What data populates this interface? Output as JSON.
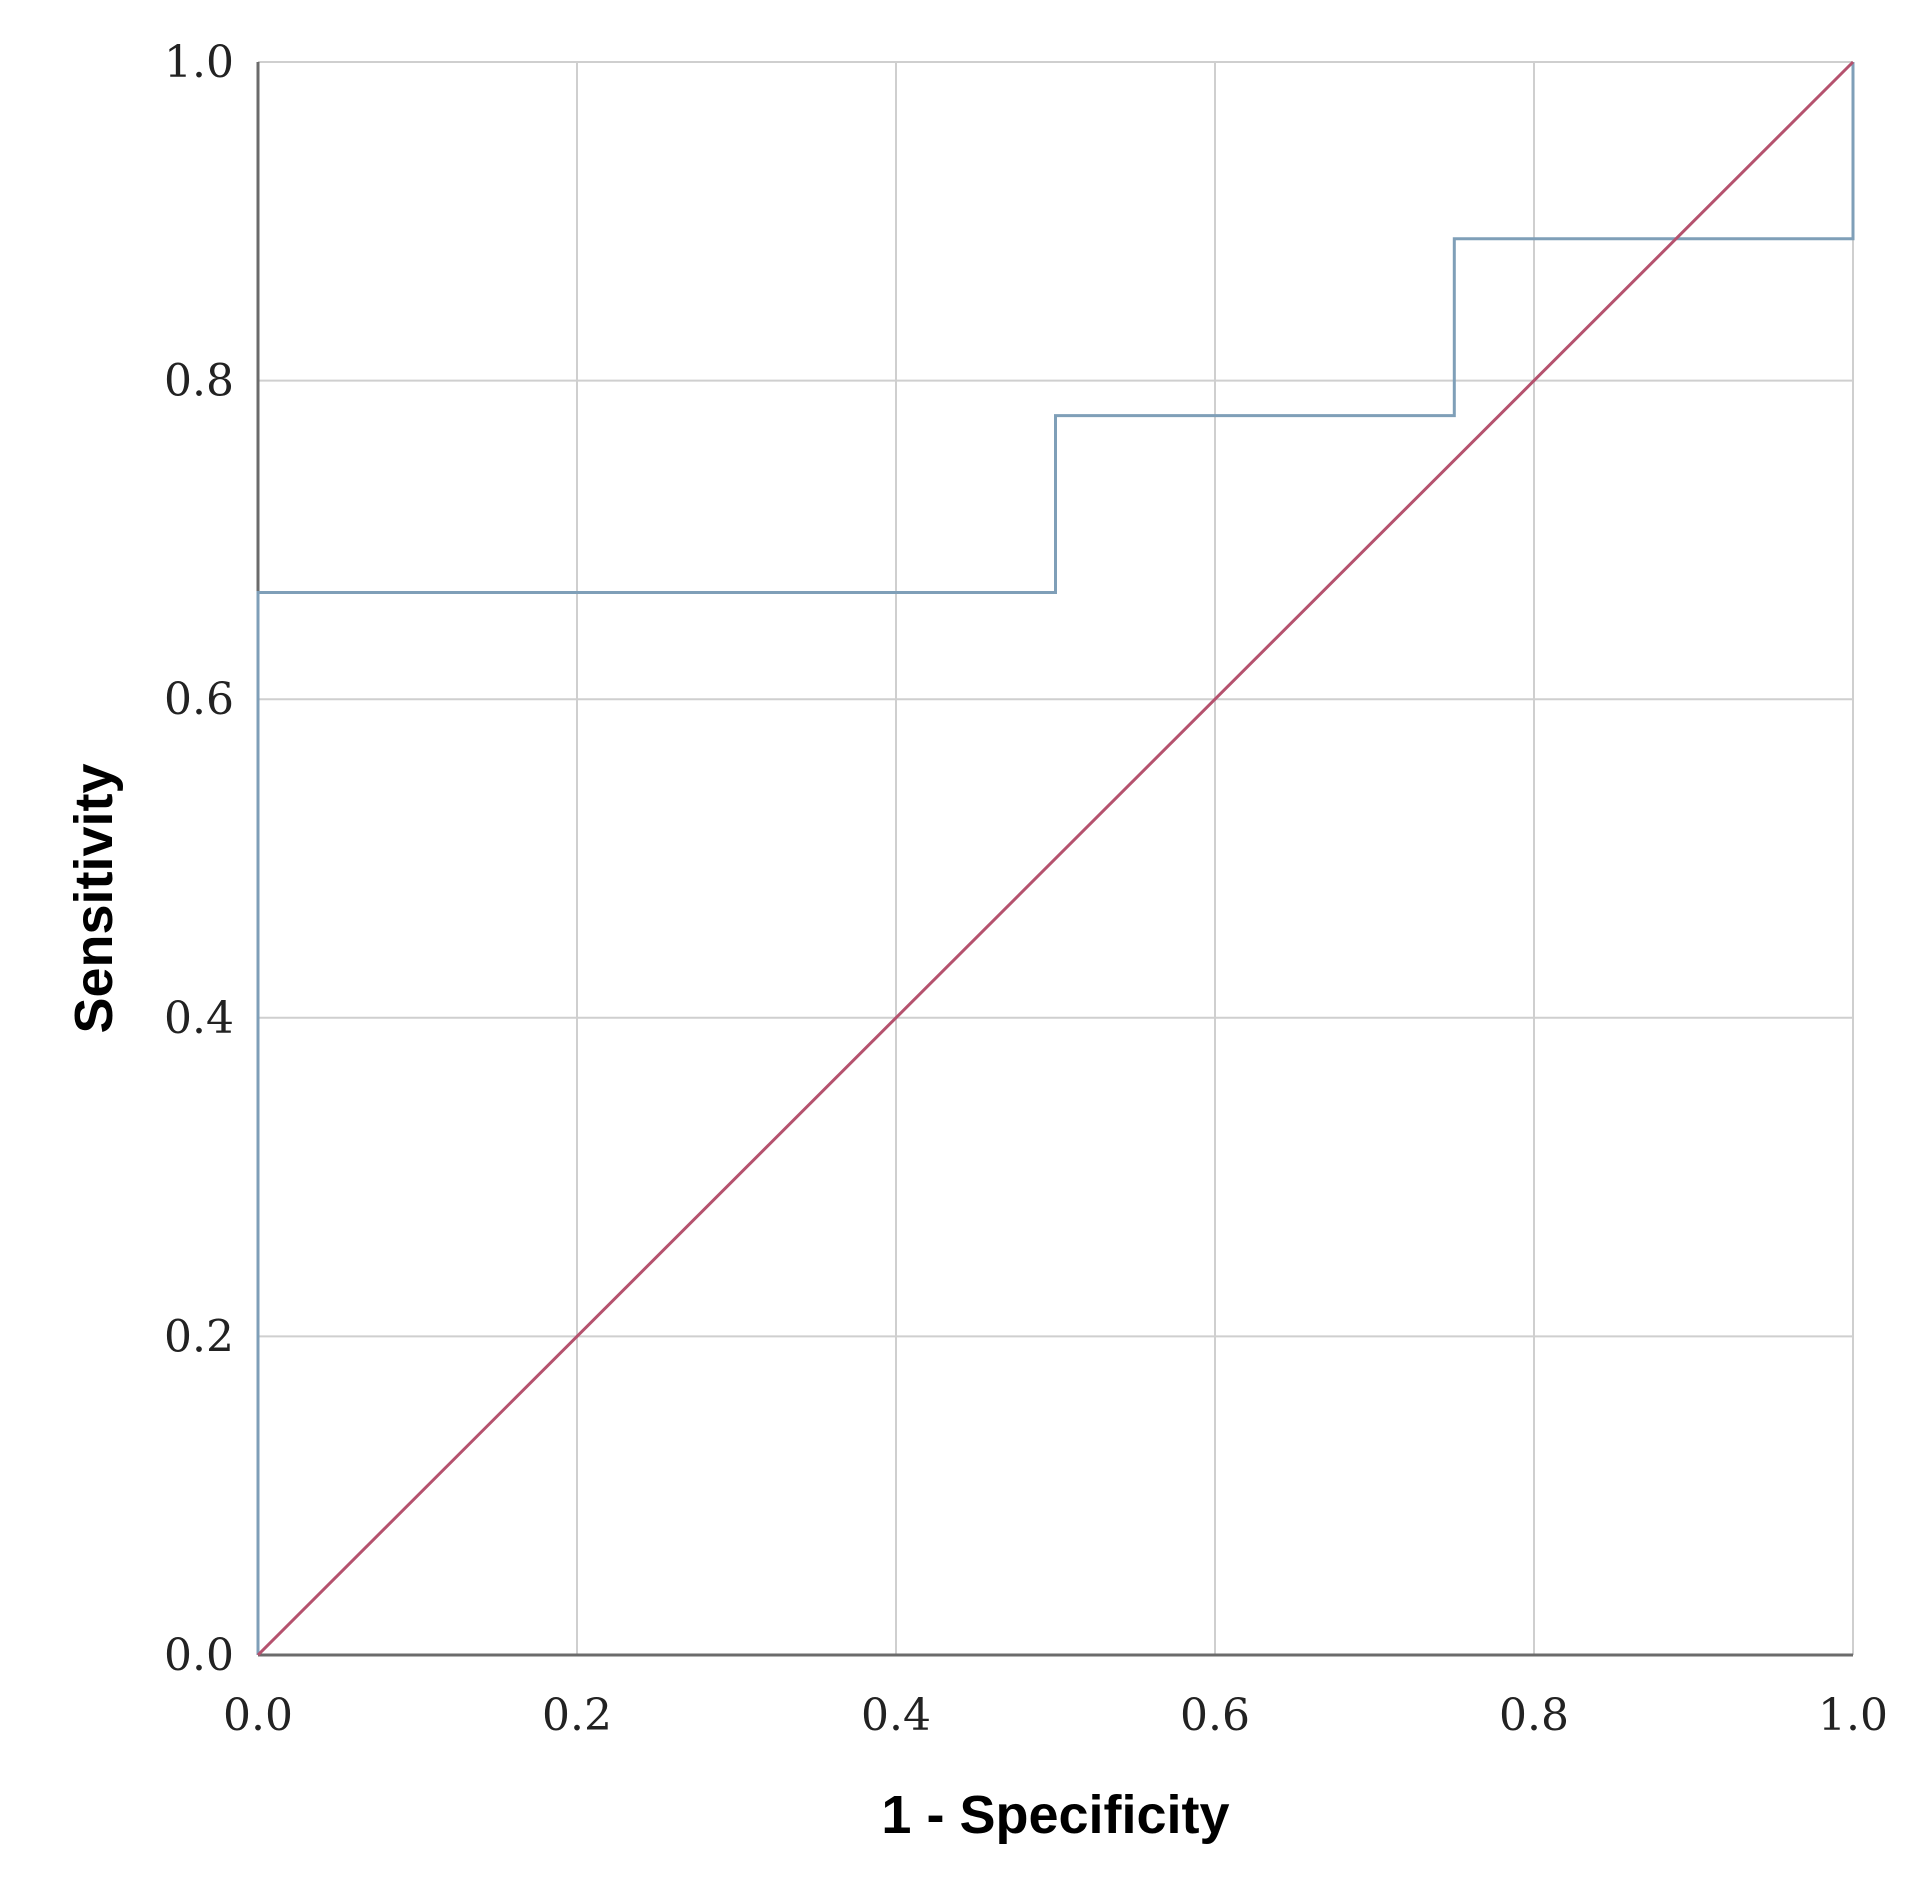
{
  "chart_data": {
    "type": "line",
    "title": "",
    "xlabel": "1 - Specificity",
    "ylabel": "Sensitivity",
    "xlim": [
      0,
      1
    ],
    "ylim": [
      0,
      1
    ],
    "x_ticks": [
      "0.0",
      "0.2",
      "0.4",
      "0.6",
      "0.8",
      "1.0"
    ],
    "y_ticks": [
      "0.0",
      "0.2",
      "0.4",
      "0.6",
      "0.8",
      "1.0"
    ],
    "grid": true,
    "legend": "none",
    "series": [
      {
        "color": "#7f9fb8",
        "x": [
          0,
          0,
          0.5,
          0.5,
          0.75,
          0.75,
          1.0,
          1.0
        ],
        "y": [
          0,
          0.667,
          0.667,
          0.778,
          0.778,
          0.889,
          0.889,
          1.0
        ]
      },
      {
        "color": "#b5526e",
        "x": [
          0,
          1
        ],
        "y": [
          0,
          1
        ]
      }
    ]
  }
}
